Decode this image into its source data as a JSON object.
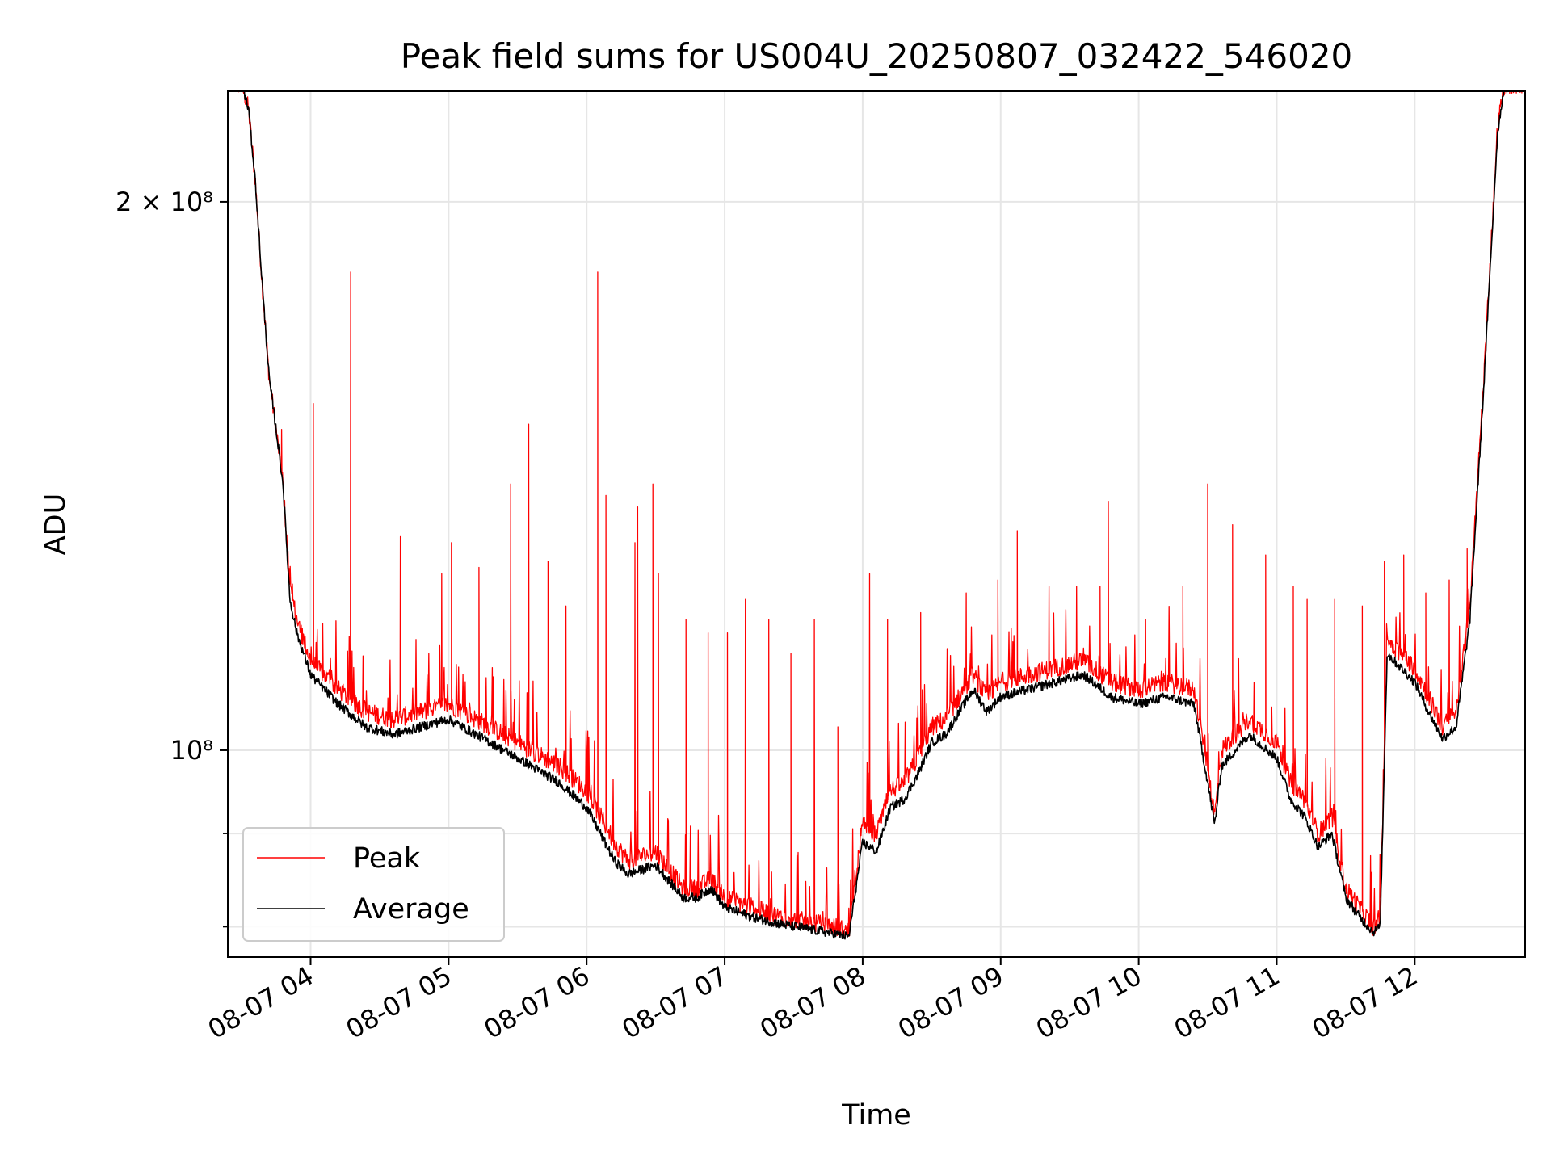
{
  "chart_data": {
    "type": "line",
    "title": "Peak field sums for US004U_20250807_032422_546020",
    "xlabel": "Time",
    "ylabel": "ADU",
    "yscale": "log",
    "grid": true,
    "legend_position": "lower-left",
    "x_ticks": [
      "08-07 04",
      "08-07 05",
      "08-07 06",
      "08-07 07",
      "08-07 08",
      "08-07 09",
      "08-07 10",
      "08-07 11",
      "08-07 12"
    ],
    "y_tick_labels": [
      "2 × 10⁸",
      "10⁸"
    ],
    "y_tick_values": [
      200000000,
      100000000
    ],
    "y_minor_ticks": [
      80000000,
      90000000
    ],
    "xlim_hours": [
      3.4,
      12.8
    ],
    "ylim": [
      77000000,
      230000000
    ],
    "series": [
      {
        "name": "Peak",
        "color": "#ff0000",
        "points": [
          [
            3.4,
            232000000
          ],
          [
            3.5,
            232000000
          ],
          [
            3.55,
            225000000
          ],
          [
            3.6,
            205000000
          ],
          [
            3.65,
            180000000
          ],
          [
            3.7,
            160000000
          ],
          [
            3.75,
            150000000
          ],
          [
            3.8,
            140000000
          ],
          [
            3.85,
            123000000
          ],
          [
            3.9,
            118000000
          ],
          [
            4.0,
            112000000
          ],
          [
            4.2,
            108000000
          ],
          [
            4.4,
            105000000
          ],
          [
            4.6,
            104000000
          ],
          [
            4.8,
            105000000
          ],
          [
            5.0,
            106000000
          ],
          [
            5.2,
            104000000
          ],
          [
            5.4,
            102000000
          ],
          [
            5.6,
            100000000
          ],
          [
            5.8,
            98000000
          ],
          [
            6.0,
            95000000
          ],
          [
            6.1,
            92000000
          ],
          [
            6.2,
            89000000
          ],
          [
            6.3,
            87000000
          ],
          [
            6.5,
            88000000
          ],
          [
            6.7,
            84000000
          ],
          [
            6.8,
            84000000
          ],
          [
            6.9,
            85000000
          ],
          [
            7.0,
            83000000
          ],
          [
            7.2,
            82000000
          ],
          [
            7.4,
            81000000
          ],
          [
            7.6,
            80500000
          ],
          [
            7.8,
            80000000
          ],
          [
            7.9,
            79500000
          ],
          [
            8.0,
            91000000
          ],
          [
            8.1,
            90000000
          ],
          [
            8.2,
            95000000
          ],
          [
            8.3,
            96000000
          ],
          [
            8.4,
            99000000
          ],
          [
            8.5,
            103000000
          ],
          [
            8.6,
            104000000
          ],
          [
            8.7,
            107000000
          ],
          [
            8.8,
            110000000
          ],
          [
            8.9,
            107000000
          ],
          [
            9.0,
            109000000
          ],
          [
            9.2,
            110000000
          ],
          [
            9.4,
            111000000
          ],
          [
            9.6,
            112000000
          ],
          [
            9.8,
            109000000
          ],
          [
            10.0,
            108000000
          ],
          [
            10.2,
            109000000
          ],
          [
            10.4,
            108000000
          ],
          [
            10.5,
            98000000
          ],
          [
            10.55,
            92000000
          ],
          [
            10.6,
            100000000
          ],
          [
            10.8,
            104000000
          ],
          [
            11.0,
            101000000
          ],
          [
            11.1,
            96000000
          ],
          [
            11.2,
            94000000
          ],
          [
            11.3,
            90000000
          ],
          [
            11.4,
            92000000
          ],
          [
            11.5,
            84000000
          ],
          [
            11.6,
            82000000
          ],
          [
            11.7,
            80000000
          ],
          [
            11.75,
            81000000
          ],
          [
            11.8,
            115000000
          ],
          [
            12.0,
            111000000
          ],
          [
            12.1,
            107000000
          ],
          [
            12.2,
            103000000
          ],
          [
            12.3,
            105000000
          ],
          [
            12.4,
            120000000
          ],
          [
            12.5,
            160000000
          ],
          [
            12.6,
            220000000
          ],
          [
            12.65,
            232000000
          ],
          [
            12.8,
            232000000
          ]
        ],
        "spikes": [
          [
            3.79,
            150000000
          ],
          [
            4.02,
            155000000
          ],
          [
            4.29,
            183000000
          ],
          [
            4.65,
            131000000
          ],
          [
            4.95,
            125000000
          ],
          [
            5.02,
            130000000
          ],
          [
            5.22,
            126000000
          ],
          [
            5.45,
            140000000
          ],
          [
            5.58,
            151000000
          ],
          [
            5.72,
            127000000
          ],
          [
            5.85,
            120000000
          ],
          [
            6.08,
            183000000
          ],
          [
            6.14,
            138000000
          ],
          [
            6.35,
            130000000
          ],
          [
            6.37,
            136000000
          ],
          [
            6.48,
            140000000
          ],
          [
            6.52,
            125000000
          ],
          [
            6.72,
            118000000
          ],
          [
            6.88,
            116000000
          ],
          [
            7.02,
            116000000
          ],
          [
            7.15,
            121000000
          ],
          [
            7.32,
            118000000
          ],
          [
            7.48,
            113000000
          ],
          [
            7.65,
            118000000
          ],
          [
            7.82,
            103000000
          ],
          [
            8.05,
            125000000
          ],
          [
            8.18,
            118000000
          ],
          [
            8.42,
            119000000
          ],
          [
            8.75,
            122000000
          ],
          [
            8.98,
            124000000
          ],
          [
            9.12,
            132000000
          ],
          [
            9.35,
            123000000
          ],
          [
            9.55,
            123000000
          ],
          [
            9.72,
            123000000
          ],
          [
            9.78,
            137000000
          ],
          [
            10.05,
            118000000
          ],
          [
            10.32,
            123000000
          ],
          [
            10.5,
            140000000
          ],
          [
            10.68,
            133000000
          ],
          [
            10.92,
            128000000
          ],
          [
            11.12,
            123000000
          ],
          [
            11.22,
            121000000
          ],
          [
            11.42,
            121000000
          ],
          [
            11.62,
            120000000
          ],
          [
            11.78,
            127000000
          ],
          [
            11.92,
            128000000
          ],
          [
            12.08,
            122000000
          ],
          [
            12.25,
            124000000
          ],
          [
            12.38,
            129000000
          ]
        ]
      },
      {
        "name": "Average",
        "color": "#000000",
        "points": [
          [
            3.4,
            232000000
          ],
          [
            3.5,
            232000000
          ],
          [
            3.55,
            225000000
          ],
          [
            3.6,
            205000000
          ],
          [
            3.65,
            180000000
          ],
          [
            3.7,
            160000000
          ],
          [
            3.75,
            150000000
          ],
          [
            3.8,
            140000000
          ],
          [
            3.85,
            121000000
          ],
          [
            3.9,
            116000000
          ],
          [
            4.0,
            110000000
          ],
          [
            4.2,
            106000000
          ],
          [
            4.4,
            103000000
          ],
          [
            4.6,
            102000000
          ],
          [
            4.8,
            103000000
          ],
          [
            5.0,
            104000000
          ],
          [
            5.2,
            102000000
          ],
          [
            5.4,
            100000000
          ],
          [
            5.6,
            98000000
          ],
          [
            5.8,
            96000000
          ],
          [
            6.0,
            93000000
          ],
          [
            6.1,
            90000000
          ],
          [
            6.2,
            87000000
          ],
          [
            6.3,
            85500000
          ],
          [
            6.5,
            86500000
          ],
          [
            6.7,
            83000000
          ],
          [
            6.8,
            83000000
          ],
          [
            6.9,
            84000000
          ],
          [
            7.0,
            82000000
          ],
          [
            7.2,
            81000000
          ],
          [
            7.4,
            80300000
          ],
          [
            7.6,
            79800000
          ],
          [
            7.8,
            79300000
          ],
          [
            7.9,
            79000000
          ],
          [
            8.0,
            89000000
          ],
          [
            8.1,
            88000000
          ],
          [
            8.2,
            93000000
          ],
          [
            8.3,
            94000000
          ],
          [
            8.4,
            97000000
          ],
          [
            8.5,
            101000000
          ],
          [
            8.6,
            102000000
          ],
          [
            8.7,
            105000000
          ],
          [
            8.8,
            108000000
          ],
          [
            8.9,
            105000000
          ],
          [
            9.0,
            107000000
          ],
          [
            9.2,
            108000000
          ],
          [
            9.4,
            109000000
          ],
          [
            9.6,
            110000000
          ],
          [
            9.8,
            107000000
          ],
          [
            10.0,
            106000000
          ],
          [
            10.2,
            107000000
          ],
          [
            10.4,
            106000000
          ],
          [
            10.5,
            96000000
          ],
          [
            10.55,
            91000000
          ],
          [
            10.6,
            98000000
          ],
          [
            10.8,
            102000000
          ],
          [
            11.0,
            99000000
          ],
          [
            11.1,
            94000000
          ],
          [
            11.2,
            92000000
          ],
          [
            11.3,
            88500000
          ],
          [
            11.4,
            90000000
          ],
          [
            11.5,
            83000000
          ],
          [
            11.6,
            81000000
          ],
          [
            11.7,
            79500000
          ],
          [
            11.75,
            80000000
          ],
          [
            11.8,
            113000000
          ],
          [
            12.0,
            109000000
          ],
          [
            12.1,
            105000000
          ],
          [
            12.2,
            101500000
          ],
          [
            12.3,
            103000000
          ],
          [
            12.4,
            118000000
          ],
          [
            12.5,
            158000000
          ],
          [
            12.6,
            218000000
          ],
          [
            12.65,
            232000000
          ],
          [
            12.8,
            232000000
          ]
        ]
      }
    ]
  }
}
